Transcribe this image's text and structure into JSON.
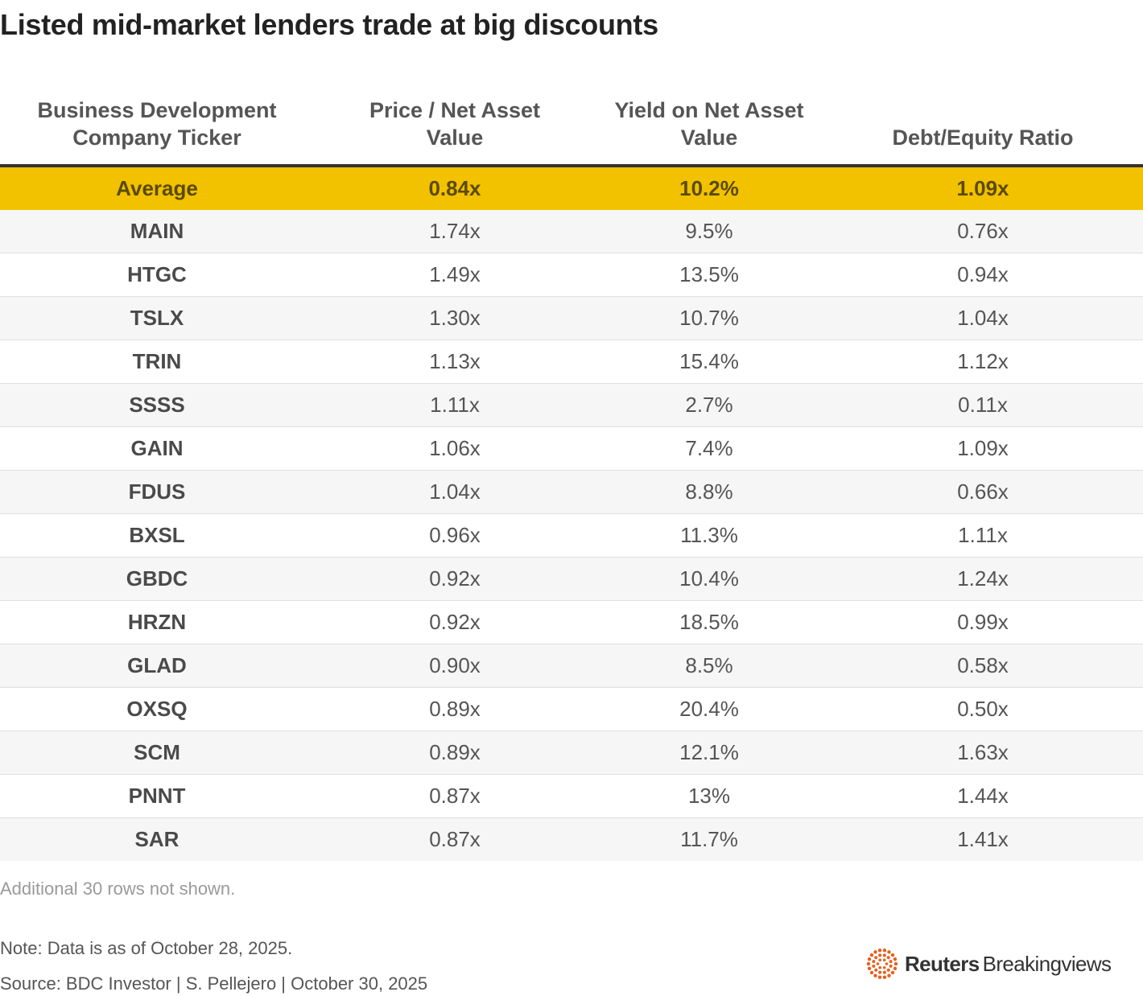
{
  "title": "Listed mid-market lenders trade at big discounts",
  "chart_data": {
    "type": "table",
    "title": "Listed mid-market lenders trade at big discounts",
    "columns": [
      "Business Development Company Ticker",
      "Price / Net Asset Value",
      "Yield on Net Asset Value",
      "Debt/Equity Ratio"
    ],
    "average": {
      "ticker": "Average",
      "price_nav": "0.84x",
      "yield_nav": "10.2%",
      "debt_equity": "1.09x"
    },
    "rows": [
      {
        "ticker": "MAIN",
        "price_nav": "1.74x",
        "yield_nav": "9.5%",
        "debt_equity": "0.76x"
      },
      {
        "ticker": "HTGC",
        "price_nav": "1.49x",
        "yield_nav": "13.5%",
        "debt_equity": "0.94x"
      },
      {
        "ticker": "TSLX",
        "price_nav": "1.30x",
        "yield_nav": "10.7%",
        "debt_equity": "1.04x"
      },
      {
        "ticker": "TRIN",
        "price_nav": "1.13x",
        "yield_nav": "15.4%",
        "debt_equity": "1.12x"
      },
      {
        "ticker": "SSSS",
        "price_nav": "1.11x",
        "yield_nav": "2.7%",
        "debt_equity": "0.11x"
      },
      {
        "ticker": "GAIN",
        "price_nav": "1.06x",
        "yield_nav": "7.4%",
        "debt_equity": "1.09x"
      },
      {
        "ticker": "FDUS",
        "price_nav": "1.04x",
        "yield_nav": "8.8%",
        "debt_equity": "0.66x"
      },
      {
        "ticker": "BXSL",
        "price_nav": "0.96x",
        "yield_nav": "11.3%",
        "debt_equity": "1.11x"
      },
      {
        "ticker": "GBDC",
        "price_nav": "0.92x",
        "yield_nav": "10.4%",
        "debt_equity": "1.24x"
      },
      {
        "ticker": "HRZN",
        "price_nav": "0.92x",
        "yield_nav": "18.5%",
        "debt_equity": "0.99x"
      },
      {
        "ticker": "GLAD",
        "price_nav": "0.90x",
        "yield_nav": "8.5%",
        "debt_equity": "0.58x"
      },
      {
        "ticker": "OXSQ",
        "price_nav": "0.89x",
        "yield_nav": "20.4%",
        "debt_equity": "0.50x"
      },
      {
        "ticker": "SCM",
        "price_nav": "0.89x",
        "yield_nav": "12.1%",
        "debt_equity": "1.63x"
      },
      {
        "ticker": "PNNT",
        "price_nav": "0.87x",
        "yield_nav": "13%",
        "debt_equity": "1.44x"
      },
      {
        "ticker": "SAR",
        "price_nav": "0.87x",
        "yield_nav": "11.7%",
        "debt_equity": "1.41x"
      }
    ]
  },
  "header": {
    "col0_line1": "Business Development",
    "col0_line2": "Company Ticker",
    "col1_line1": "Price / Net Asset",
    "col1_line2": "Value",
    "col2_line1": "Yield on Net Asset",
    "col2_line2": "Value",
    "col3": "Debt/Equity Ratio"
  },
  "footer": {
    "more_rows": "Additional 30 rows not shown.",
    "note": "Note: Data is as of October 28, 2025.",
    "source": "Source: BDC Investor | S. Pellejero | October 30, 2025"
  },
  "logo": {
    "brand": "Reuters",
    "sub": "Breakingviews",
    "icon": "reuters-dot-ring-icon"
  },
  "colors": {
    "highlight": "#f2c100",
    "stripe": "#f6f6f6",
    "logo_orange": "#e8601c"
  }
}
